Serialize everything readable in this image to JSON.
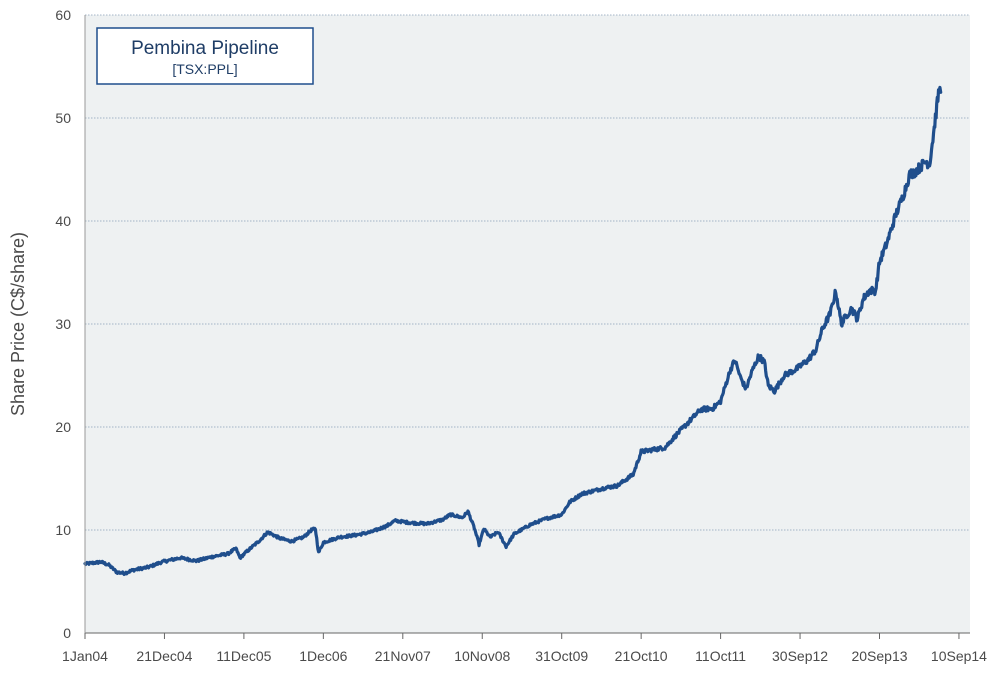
{
  "chart_data": {
    "type": "line",
    "title": "",
    "legend_box": {
      "title": "Pembina Pipeline",
      "subtitle": "[TSX:PPL]",
      "placement": "top-left"
    },
    "xlabel": "",
    "ylabel": "Share Price (C$/share)",
    "ylim": [
      0,
      60
    ],
    "yticks": [
      0,
      10,
      20,
      30,
      40,
      50,
      60
    ],
    "grid": "horizontal dotted",
    "x_tick_labels": [
      "1Jan04",
      "21Dec04",
      "11Dec05",
      "1Dec06",
      "21Nov07",
      "10Nov08",
      "31Oct09",
      "21Oct10",
      "11Oct11",
      "30Sep12",
      "20Sep13",
      "10Sep14"
    ],
    "colors": {
      "line": "#1f4e8c",
      "plot_bg": "#eef1f2",
      "grid": "#8aa0b8",
      "legend_border": "#1f4e8c"
    },
    "series": [
      {
        "name": "Pembina Pipeline",
        "points": [
          [
            0.0,
            6.7
          ],
          [
            0.1,
            6.8
          ],
          [
            0.2,
            6.9
          ],
          [
            0.3,
            6.6
          ],
          [
            0.4,
            5.9
          ],
          [
            0.5,
            5.8
          ],
          [
            0.6,
            6.1
          ],
          [
            0.8,
            6.4
          ],
          [
            0.97,
            6.9
          ],
          [
            1.2,
            7.3
          ],
          [
            1.4,
            7.0
          ],
          [
            1.6,
            7.4
          ],
          [
            1.8,
            7.7
          ],
          [
            1.9,
            8.2
          ],
          [
            1.95,
            7.3
          ],
          [
            2.05,
            8.0
          ],
          [
            2.2,
            9.0
          ],
          [
            2.3,
            9.8
          ],
          [
            2.45,
            9.2
          ],
          [
            2.6,
            8.9
          ],
          [
            2.75,
            9.3
          ],
          [
            2.85,
            10.0
          ],
          [
            2.9,
            10.1
          ],
          [
            2.94,
            7.8
          ],
          [
            3.0,
            8.8
          ],
          [
            3.2,
            9.3
          ],
          [
            3.4,
            9.5
          ],
          [
            3.6,
            9.8
          ],
          [
            3.8,
            10.4
          ],
          [
            3.9,
            10.9
          ],
          [
            4.1,
            10.7
          ],
          [
            4.3,
            10.6
          ],
          [
            4.5,
            11.0
          ],
          [
            4.6,
            11.5
          ],
          [
            4.75,
            11.2
          ],
          [
            4.82,
            11.8
          ],
          [
            4.9,
            10.2
          ],
          [
            4.96,
            8.6
          ],
          [
            5.02,
            10.1
          ],
          [
            5.1,
            9.3
          ],
          [
            5.2,
            9.8
          ],
          [
            5.3,
            8.4
          ],
          [
            5.4,
            9.6
          ],
          [
            5.6,
            10.5
          ],
          [
            5.8,
            11.1
          ],
          [
            6.0,
            11.5
          ],
          [
            6.1,
            12.7
          ],
          [
            6.25,
            13.5
          ],
          [
            6.4,
            13.8
          ],
          [
            6.55,
            14.1
          ],
          [
            6.7,
            14.3
          ],
          [
            6.9,
            15.4
          ],
          [
            7.0,
            17.6
          ],
          [
            7.15,
            17.8
          ],
          [
            7.3,
            18.0
          ],
          [
            7.45,
            19.3
          ],
          [
            7.6,
            20.5
          ],
          [
            7.75,
            21.7
          ],
          [
            7.9,
            21.8
          ],
          [
            8.0,
            22.5
          ],
          [
            8.12,
            25.5
          ],
          [
            8.18,
            26.5
          ],
          [
            8.25,
            24.8
          ],
          [
            8.32,
            23.7
          ],
          [
            8.4,
            25.5
          ],
          [
            8.48,
            26.9
          ],
          [
            8.55,
            26.3
          ],
          [
            8.6,
            24.0
          ],
          [
            8.68,
            23.5
          ],
          [
            8.8,
            25.0
          ],
          [
            8.95,
            25.6
          ],
          [
            9.1,
            26.5
          ],
          [
            9.2,
            27.5
          ],
          [
            9.28,
            29.5
          ],
          [
            9.38,
            31.0
          ],
          [
            9.45,
            33.2
          ],
          [
            9.52,
            30.0
          ],
          [
            9.58,
            30.8
          ],
          [
            9.65,
            31.5
          ],
          [
            9.72,
            30.5
          ],
          [
            9.8,
            32.5
          ],
          [
            9.88,
            33.3
          ],
          [
            9.95,
            33.2
          ],
          [
            10.0,
            36.0
          ],
          [
            10.1,
            38.0
          ],
          [
            10.2,
            40.5
          ],
          [
            10.3,
            42.5
          ],
          [
            10.38,
            44.5
          ],
          [
            10.45,
            44.8
          ],
          [
            10.52,
            45.3
          ],
          [
            10.58,
            45.8
          ],
          [
            10.63,
            45.5
          ],
          [
            10.68,
            48.5
          ],
          [
            10.72,
            51.0
          ],
          [
            10.75,
            52.8
          ],
          [
            10.77,
            52.5
          ]
        ]
      }
    ]
  }
}
